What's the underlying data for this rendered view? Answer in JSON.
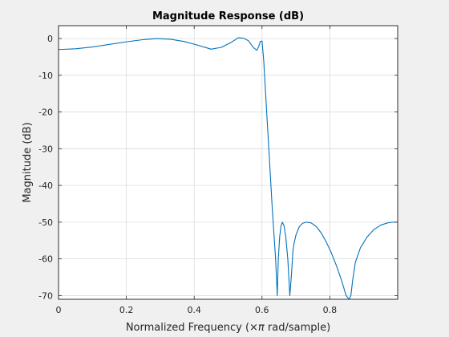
{
  "chart_data": {
    "type": "line",
    "title": "Magnitude Response (dB)",
    "xlabel_pre": "Normalized Frequency  (",
    "xlabel_pi": "×π",
    "xlabel_post": " rad/sample)",
    "ylabel": "Magnitude (dB)",
    "xlim": [
      0,
      1
    ],
    "ylim": [
      -71,
      3.5
    ],
    "xticks": [
      0,
      0.2,
      0.4,
      0.6,
      0.8
    ],
    "xtick_labels": [
      "0",
      "0.2",
      "0.4",
      "0.6",
      "0.8"
    ],
    "yticks": [
      0,
      -10,
      -20,
      -30,
      -40,
      -50,
      -60,
      -70
    ],
    "ytick_labels": [
      "0",
      "-10",
      "-20",
      "-30",
      "-40",
      "-50",
      "-60",
      "-70"
    ],
    "grid": true,
    "series": [
      {
        "color": "#0072bd",
        "x": [
          0,
          0.05,
          0.1,
          0.15,
          0.2,
          0.25,
          0.29,
          0.33,
          0.37,
          0.41,
          0.45,
          0.48,
          0.51,
          0.53,
          0.545,
          0.56,
          0.575,
          0.585,
          0.59,
          0.595,
          0.6,
          0.605,
          0.61,
          0.615,
          0.62,
          0.625,
          0.63,
          0.635,
          0.64,
          0.645,
          0.648,
          0.652,
          0.656,
          0.66,
          0.665,
          0.67,
          0.676,
          0.682,
          0.687,
          0.691,
          0.694,
          0.7,
          0.71,
          0.72,
          0.73,
          0.745,
          0.76,
          0.775,
          0.79,
          0.805,
          0.82,
          0.835,
          0.848,
          0.857,
          0.862,
          0.867,
          0.875,
          0.89,
          0.91,
          0.93,
          0.95,
          0.97,
          0.985,
          1.0
        ],
        "y": [
          -3,
          -2.8,
          -2.3,
          -1.6,
          -0.9,
          -0.3,
          0,
          -0.2,
          -0.8,
          -1.8,
          -2.9,
          -2.4,
          -1.0,
          0.2,
          0.1,
          -0.6,
          -2.5,
          -3.2,
          -2.2,
          -0.8,
          -0.7,
          -6,
          -14,
          -22,
          -30,
          -38,
          -46,
          -53,
          -60,
          -70,
          -60,
          -54,
          -51,
          -50,
          -51,
          -54,
          -60,
          -70,
          -64,
          -58,
          -56,
          -53.5,
          -51.2,
          -50.3,
          -50,
          -50.2,
          -51.2,
          -53,
          -55.5,
          -58.5,
          -62,
          -66,
          -70,
          -71,
          -70,
          -66,
          -61,
          -57,
          -54,
          -52,
          -50.8,
          -50.2,
          -50,
          -50
        ]
      }
    ]
  }
}
